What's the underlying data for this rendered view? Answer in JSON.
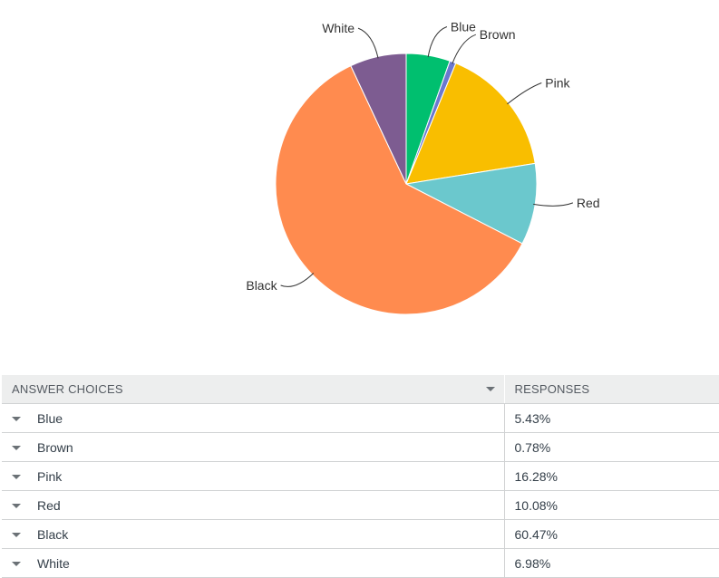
{
  "chart_data": {
    "type": "pie",
    "categories": [
      "Blue",
      "Brown",
      "Pink",
      "Red",
      "Black",
      "White"
    ],
    "values": [
      5.43,
      0.78,
      16.28,
      10.08,
      60.47,
      6.98
    ],
    "colors": [
      "#00bf6f",
      "#6b78d0",
      "#f9be00",
      "#6bc8cd",
      "#ff8b4f",
      "#7d5c91"
    ],
    "title": "",
    "labels_position": "outside with leader lines"
  },
  "table": {
    "headers": {
      "choices": "ANSWER CHOICES",
      "responses": "RESPONSES"
    },
    "rows": [
      {
        "choice": "Blue",
        "response": "5.43%"
      },
      {
        "choice": "Brown",
        "response": "0.78%"
      },
      {
        "choice": "Pink",
        "response": "16.28%"
      },
      {
        "choice": "Red",
        "response": "10.08%"
      },
      {
        "choice": "Black",
        "response": "60.47%"
      },
      {
        "choice": "White",
        "response": "6.98%"
      }
    ]
  }
}
